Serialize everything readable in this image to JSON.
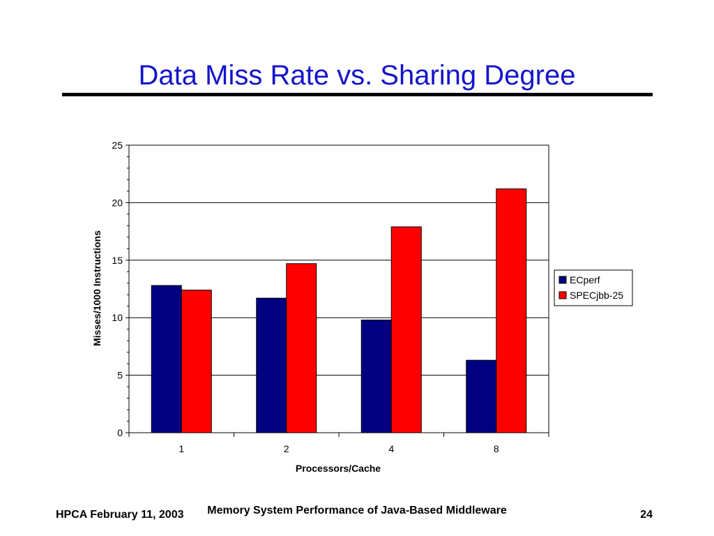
{
  "slide": {
    "title": "Data Miss Rate vs. Sharing Degree",
    "footer_left": "HPCA February 11, 2003",
    "footer_center": "Memory System Performance of Java-Based Middleware",
    "page_number": "24"
  },
  "colors": {
    "title": "#1414cc",
    "ecperf": "#000080",
    "specjbb": "#ff0000"
  },
  "chart_data": {
    "type": "bar",
    "categories": [
      "1",
      "2",
      "4",
      "8"
    ],
    "series": [
      {
        "name": "ECperf",
        "values": [
          12.8,
          11.7,
          9.8,
          6.3
        ]
      },
      {
        "name": "SPECjbb-25",
        "values": [
          12.4,
          14.7,
          17.9,
          21.2
        ]
      }
    ],
    "xlabel": "Processors/Cache",
    "ylabel": "Misses/1000 Instructions",
    "ylim": [
      0,
      25
    ],
    "yticks": [
      0,
      5,
      10,
      15,
      20,
      25
    ],
    "grid": true,
    "legend": "right"
  }
}
